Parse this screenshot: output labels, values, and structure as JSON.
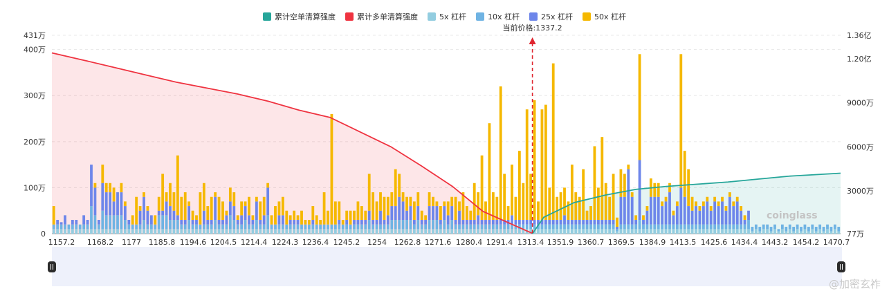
{
  "chart_data": {
    "type": "bar",
    "legend": [
      {
        "name": "累计空单清算强度",
        "color": "#26a69a"
      },
      {
        "name": "累计多单清算强度",
        "color": "#ef3340"
      },
      {
        "name": "5x 杠杆",
        "color": "#93cde0"
      },
      {
        "name": "10x 杠杆",
        "color": "#6fb3e3"
      },
      {
        "name": "25x 杠杆",
        "color": "#6d86ea"
      },
      {
        "name": "50x 杠杆",
        "color": "#f5b800"
      }
    ],
    "current_price_label": "当前价格:1337.2",
    "current_price": 1337.2,
    "x_ticks": [
      "1157.2",
      "1168.2",
      "1177",
      "1185.8",
      "1194.6",
      "1204.5",
      "1214.4",
      "1224.3",
      "1236.4",
      "1245.2",
      "1254",
      "1262.8",
      "1271.6",
      "1280.4",
      "1291.4",
      "1313.4",
      "1351.9",
      "1360.7",
      "1369.5",
      "1384.9",
      "1413.5",
      "1425.6",
      "1434.4",
      "1443.2",
      "1454.2",
      "1470.7"
    ],
    "y_left_ticks": [
      "0",
      "100万",
      "200万",
      "300万",
      "400万",
      "431万"
    ],
    "y_left_range": [
      0,
      4310000
    ],
    "y_right_ticks": [
      "77万",
      "3000万",
      "6000万",
      "9000万",
      "1.20亿",
      "1.36亿"
    ],
    "y_right_range": [
      770000,
      136000000
    ],
    "long_cumulative": [
      [
        1157.2,
        124000000
      ],
      [
        1168.2,
        119000000
      ],
      [
        1177,
        114000000
      ],
      [
        1185.8,
        109000000
      ],
      [
        1194.6,
        104000000
      ],
      [
        1204.5,
        100000000
      ],
      [
        1214.4,
        96000000
      ],
      [
        1224.3,
        91000000
      ],
      [
        1236.4,
        85000000
      ],
      [
        1245.2,
        80000000
      ],
      [
        1254,
        70000000
      ],
      [
        1262.8,
        60000000
      ],
      [
        1271.6,
        47000000
      ],
      [
        1280.4,
        33000000
      ],
      [
        1291.4,
        16000000
      ],
      [
        1313.4,
        1000000
      ]
    ],
    "short_cumulative": [
      [
        1337.2,
        770000
      ],
      [
        1351.9,
        12000000
      ],
      [
        1360.7,
        22000000
      ],
      [
        1369.5,
        27000000
      ],
      [
        1384.9,
        31000000
      ],
      [
        1413.5,
        33000000
      ],
      [
        1425.6,
        34500000
      ],
      [
        1434.4,
        36000000
      ],
      [
        1443.2,
        38000000
      ],
      [
        1454.2,
        40000000
      ],
      [
        1470.7,
        42000000
      ]
    ],
    "bar_series_order": [
      "5x 杠杆",
      "10x 杠杆",
      "25x 杠杆",
      "50x 杠杆"
    ],
    "bars": [
      [
        0.1,
        0.1,
        0,
        0.4
      ],
      [
        0.1,
        0.1,
        0.1,
        0
      ],
      [
        0.1,
        0.1,
        0.05,
        0
      ],
      [
        0.1,
        0.1,
        0.2,
        0
      ],
      [
        0.1,
        0.1,
        0,
        0
      ],
      [
        0.1,
        0.1,
        0.1,
        0
      ],
      [
        0.1,
        0.1,
        0.1,
        0
      ],
      [
        0.1,
        0.1,
        0,
        0
      ],
      [
        0.1,
        0.1,
        0.2,
        0
      ],
      [
        0.1,
        0.1,
        0.1,
        0
      ],
      [
        0.1,
        0.5,
        0.9,
        0
      ],
      [
        0.1,
        0.3,
        0.6,
        0.1
      ],
      [
        0.1,
        0.1,
        0.1,
        0
      ],
      [
        0.1,
        0.4,
        0.6,
        0.4
      ],
      [
        0.1,
        0.3,
        0.5,
        0.2
      ],
      [
        0.1,
        0.3,
        0.5,
        0.2
      ],
      [
        0.1,
        0.3,
        0.3,
        0.3
      ],
      [
        0.1,
        0.3,
        0.5,
        0
      ],
      [
        0.1,
        0.3,
        0.5,
        0.2
      ],
      [
        0.1,
        0.2,
        0.3,
        0.1
      ],
      [
        0.1,
        0.1,
        0.1,
        0
      ],
      [
        0.1,
        0.1,
        0,
        0.2
      ],
      [
        0.1,
        0.1,
        0,
        0.6
      ],
      [
        0.1,
        0.1,
        0.3,
        0.1
      ],
      [
        0.1,
        0.2,
        0.5,
        0.1
      ],
      [
        0.1,
        0.1,
        0.3,
        0.1
      ],
      [
        0.1,
        0.1,
        0.2,
        0
      ],
      [
        0.1,
        0.1,
        0,
        0.2
      ],
      [
        0.1,
        0.3,
        0.1,
        0.3
      ],
      [
        0.1,
        0.3,
        0.1,
        0.8
      ],
      [
        0.1,
        0.3,
        0.3,
        0.2
      ],
      [
        0.1,
        0.2,
        0.3,
        0.5
      ],
      [
        0.1,
        0.2,
        0.2,
        0.4
      ],
      [
        0.1,
        0.2,
        0.1,
        1.3
      ],
      [
        0.1,
        0.1,
        0.1,
        0.5
      ],
      [
        0.1,
        0.1,
        0.1,
        0.6
      ],
      [
        0.1,
        0.2,
        0.3,
        0.1
      ],
      [
        0.1,
        0.1,
        0.1,
        0.2
      ],
      [
        0.1,
        0.1,
        0.1,
        0.1
      ],
      [
        0.1,
        0.1,
        0,
        0.7
      ],
      [
        0.1,
        0.1,
        0.3,
        0.6
      ],
      [
        0.1,
        0.1,
        0.1,
        0.3
      ],
      [
        0.1,
        0.1,
        0.1,
        0.5
      ],
      [
        0.1,
        0.2,
        0.5,
        0.1
      ],
      [
        0.1,
        0.1,
        0.1,
        0.5
      ],
      [
        0.1,
        0.1,
        0.1,
        0.4
      ],
      [
        0.1,
        0.1,
        0.2,
        0.1
      ],
      [
        0.1,
        0.3,
        0.3,
        0.3
      ],
      [
        0.1,
        0.2,
        0.3,
        0.3
      ],
      [
        0.1,
        0.1,
        0.1,
        0.1
      ],
      [
        0.1,
        0.1,
        0.2,
        0.3
      ],
      [
        0.1,
        0.2,
        0.3,
        0.1
      ],
      [
        0.1,
        0.1,
        0.2,
        0.4
      ],
      [
        0.1,
        0.1,
        0.1,
        0.1
      ],
      [
        0.1,
        0.2,
        0.4,
        0.1
      ],
      [
        0.1,
        0.1,
        0.1,
        0.4
      ],
      [
        0.1,
        0.1,
        0.2,
        0.4
      ],
      [
        0.1,
        0.3,
        0.6,
        0.1
      ],
      [
        0.1,
        0.1,
        0,
        0.2
      ],
      [
        0.1,
        0.1,
        0,
        0.4
      ],
      [
        0.1,
        0.1,
        0.2,
        0.3
      ],
      [
        0.1,
        0.1,
        0.2,
        0.4
      ],
      [
        0.1,
        0.1,
        0,
        0.3
      ],
      [
        0.1,
        0.1,
        0.1,
        0.1
      ],
      [
        0.1,
        0.1,
        0.1,
        0.2
      ],
      [
        0.1,
        0.1,
        0.1,
        0.1
      ],
      [
        0.1,
        0.1,
        0,
        0.3
      ],
      [
        0.1,
        0.1,
        0,
        0.1
      ],
      [
        0.1,
        0.1,
        0,
        0.1
      ],
      [
        0.1,
        0.1,
        0.1,
        0.3
      ],
      [
        0.1,
        0.1,
        0,
        0.2
      ],
      [
        0.1,
        0.1,
        0,
        0.1
      ],
      [
        0.1,
        0.1,
        0,
        0.7
      ],
      [
        0.1,
        0.1,
        0,
        0.3
      ],
      [
        0.1,
        0.1,
        0,
        2.4
      ],
      [
        0.1,
        0.1,
        0,
        0.5
      ],
      [
        0.1,
        0.1,
        0.1,
        0.4
      ],
      [
        0.1,
        0.1,
        0,
        0.1
      ],
      [
        0.1,
        0.1,
        0.1,
        0.2
      ],
      [
        0.1,
        0.1,
        0,
        0.3
      ],
      [
        0.1,
        0.1,
        0.1,
        0.2
      ],
      [
        0.1,
        0.1,
        0.1,
        0.4
      ],
      [
        0.1,
        0.1,
        0.1,
        0.3
      ],
      [
        0.1,
        0.1,
        0.1,
        0.2
      ],
      [
        0.1,
        0.2,
        0.2,
        0.8
      ],
      [
        0.1,
        0.1,
        0.1,
        0.6
      ],
      [
        0.1,
        0.1,
        0.1,
        0.4
      ],
      [
        0.1,
        0.1,
        0.3,
        0.4
      ],
      [
        0.1,
        0.1,
        0.1,
        0.5
      ],
      [
        0.1,
        0.1,
        0.2,
        0.4
      ],
      [
        0.1,
        0.2,
        0.3,
        0.3
      ],
      [
        0.1,
        0.2,
        0.3,
        0.8
      ],
      [
        0.1,
        0.2,
        0.5,
        0.5
      ],
      [
        0.1,
        0.2,
        0.4,
        0.2
      ],
      [
        0.1,
        0.2,
        0.2,
        0.3
      ],
      [
        0.1,
        0.2,
        0.3,
        0.2
      ],
      [
        0.1,
        0.1,
        0.1,
        0.4
      ],
      [
        0.1,
        0.2,
        0.3,
        0.3
      ],
      [
        0.1,
        0.1,
        0.1,
        0.2
      ],
      [
        0.1,
        0.1,
        0.1,
        0.1
      ],
      [
        0.1,
        0.2,
        0.3,
        0.3
      ],
      [
        0.1,
        0.2,
        0.3,
        0.2
      ],
      [
        0.1,
        0.2,
        0.3,
        0.1
      ],
      [
        0.1,
        0.1,
        0.1,
        0.3
      ],
      [
        0.1,
        0.2,
        0.3,
        0.1
      ],
      [
        0.1,
        0.1,
        0.2,
        0.3
      ],
      [
        0.1,
        0.2,
        0.3,
        0.2
      ],
      [
        0.1,
        0.1,
        0.1,
        0.5
      ],
      [
        0.1,
        0.1,
        0.3,
        0.2
      ],
      [
        0.1,
        0.1,
        0.1,
        0.6
      ],
      [
        0.1,
        0.1,
        0.1,
        0.3
      ],
      [
        0.1,
        0.1,
        0.1,
        0.2
      ],
      [
        0.1,
        0.1,
        0.1,
        0.8
      ],
      [
        0.1,
        0.1,
        0.2,
        0.5
      ],
      [
        0.1,
        0.1,
        0.1,
        1.4
      ],
      [
        0.1,
        0.1,
        0.1,
        0.4
      ],
      [
        0.1,
        0.1,
        0.1,
        2.1
      ],
      [
        0.1,
        0.1,
        0.1,
        0.6
      ],
      [
        0.1,
        0.1,
        0.1,
        0.5
      ],
      [
        0.1,
        0.1,
        0.1,
        2.9
      ],
      [
        0.1,
        0.1,
        0.1,
        1.0
      ],
      [
        0.1,
        0.1,
        0.1,
        0.3
      ],
      [
        0.1,
        0.1,
        0.2,
        1.1
      ],
      [
        0.1,
        0.1,
        0.1,
        0.5
      ],
      [
        0.1,
        0.1,
        0.1,
        1.5
      ],
      [
        0.1,
        0.1,
        0.1,
        0.8
      ],
      [
        0.1,
        0.1,
        0.1,
        2.4
      ],
      [
        0.1,
        0.1,
        0.1,
        1.0
      ],
      [
        0.1,
        0.1,
        0.1,
        2.6
      ],
      [
        0.1,
        0.1,
        0.1,
        0.4
      ],
      [
        0.1,
        0.1,
        0.1,
        2.4
      ],
      [
        0.1,
        0.1,
        0.1,
        2.5
      ],
      [
        0.1,
        0.1,
        0.1,
        0.7
      ],
      [
        0.1,
        0.1,
        0.1,
        3.4
      ],
      [
        0.1,
        0.1,
        0.1,
        0.5
      ],
      [
        0.1,
        0.1,
        0.1,
        0.6
      ],
      [
        0.1,
        0.1,
        0.2,
        0.6
      ],
      [
        0.1,
        0.1,
        0.1,
        0.4
      ],
      [
        0.1,
        0.1,
        0.1,
        1.2
      ],
      [
        0.1,
        0.1,
        0.1,
        0.6
      ],
      [
        0.1,
        0.1,
        0.1,
        0.5
      ],
      [
        0.1,
        0.1,
        0.1,
        1.1
      ],
      [
        0.1,
        0.1,
        0.1,
        0.2
      ],
      [
        0.1,
        0.1,
        0.1,
        0.3
      ],
      [
        0.1,
        0.1,
        0.1,
        1.6
      ],
      [
        0.1,
        0.1,
        0.1,
        0.7
      ],
      [
        0.1,
        0.1,
        0.1,
        1.8
      ],
      [
        0.1,
        0.1,
        0.1,
        0.8
      ],
      [
        0.1,
        0.1,
        0.1,
        0.5
      ],
      [
        0.1,
        0.1,
        0.1,
        1.0
      ],
      [
        0.05,
        0.05,
        0.05,
        0.2
      ],
      [
        0.1,
        0.1,
        0.6,
        0.6
      ],
      [
        0.1,
        0.1,
        0.6,
        0.5
      ],
      [
        0.1,
        0.1,
        1.2,
        0.1
      ],
      [
        0.1,
        0.1,
        0.6,
        0.1
      ],
      [
        0.1,
        0.1,
        0.1,
        0.1
      ],
      [
        0.1,
        0.2,
        1.3,
        2.3
      ],
      [
        0.1,
        0.1,
        0.1,
        0.1
      ],
      [
        0.1,
        0.1,
        0.3,
        0.1
      ],
      [
        0.1,
        0.1,
        0.6,
        0.4
      ],
      [
        0.1,
        0.1,
        0.6,
        0.3
      ],
      [
        0.1,
        0.1,
        0.6,
        0.3
      ],
      [
        0.1,
        0.1,
        0.4,
        0.1
      ],
      [
        0.1,
        0.1,
        0.5,
        0.1
      ],
      [
        0.1,
        0.1,
        0.7,
        0.2
      ],
      [
        0.1,
        0.1,
        0.2,
        0.1
      ],
      [
        0.1,
        0.1,
        0.4,
        0.1
      ],
      [
        0.1,
        0.1,
        0.8,
        2.9
      ],
      [
        0.1,
        0.1,
        0.6,
        1.0
      ],
      [
        0.1,
        0.1,
        0.4,
        0.8
      ],
      [
        0.1,
        0.1,
        0.3,
        0.3
      ],
      [
        0.1,
        0.1,
        0.4,
        0.1
      ],
      [
        0.1,
        0.1,
        0.3,
        0.1
      ],
      [
        0.1,
        0.1,
        0.4,
        0.1
      ],
      [
        0.1,
        0.1,
        0.5,
        0.1
      ],
      [
        0.1,
        0.1,
        0.3,
        0.1
      ],
      [
        0.1,
        0.1,
        0.5,
        0.1
      ],
      [
        0.1,
        0.1,
        0.4,
        0.1
      ],
      [
        0.1,
        0.1,
        0.5,
        0.1
      ],
      [
        0.1,
        0.1,
        0.3,
        0.1
      ],
      [
        0.1,
        0.1,
        0.6,
        0.1
      ],
      [
        0.1,
        0.1,
        0.4,
        0.1
      ],
      [
        0.1,
        0.1,
        0.5,
        0.1
      ],
      [
        0.1,
        0.1,
        0.3,
        0.1
      ],
      [
        0.1,
        0.1,
        0.1,
        0.1
      ],
      [
        0.1,
        0.2,
        0.2,
        0
      ],
      [
        0.05,
        0.1,
        0,
        0
      ],
      [
        0.1,
        0.1,
        0,
        0
      ],
      [
        0.05,
        0.1,
        0,
        0
      ],
      [
        0.1,
        0.1,
        0,
        0
      ],
      [
        0.1,
        0.1,
        0,
        0
      ],
      [
        0.05,
        0.1,
        0,
        0
      ],
      [
        0.1,
        0.1,
        0,
        0
      ],
      [
        0.05,
        0.05,
        0,
        0
      ],
      [
        0.1,
        0.1,
        0,
        0
      ],
      [
        0.05,
        0.1,
        0,
        0
      ],
      [
        0.1,
        0.1,
        0,
        0
      ],
      [
        0.05,
        0.1,
        0,
        0
      ],
      [
        0.1,
        0.1,
        0,
        0
      ],
      [
        0.05,
        0.1,
        0,
        0
      ],
      [
        0.1,
        0.1,
        0,
        0
      ],
      [
        0.05,
        0.1,
        0,
        0
      ],
      [
        0.1,
        0.1,
        0,
        0
      ],
      [
        0.05,
        0.1,
        0,
        0
      ],
      [
        0.1,
        0.1,
        0,
        0
      ],
      [
        0.05,
        0.1,
        0,
        0
      ],
      [
        0.1,
        0.1,
        0,
        0
      ],
      [
        0.05,
        0.1,
        0,
        0
      ],
      [
        0.1,
        0.1,
        0,
        0
      ],
      [
        0.05,
        0.1,
        0,
        0
      ]
    ]
  },
  "watermark": {
    "brand": "coinglass",
    "source": "@加密玄祚"
  }
}
